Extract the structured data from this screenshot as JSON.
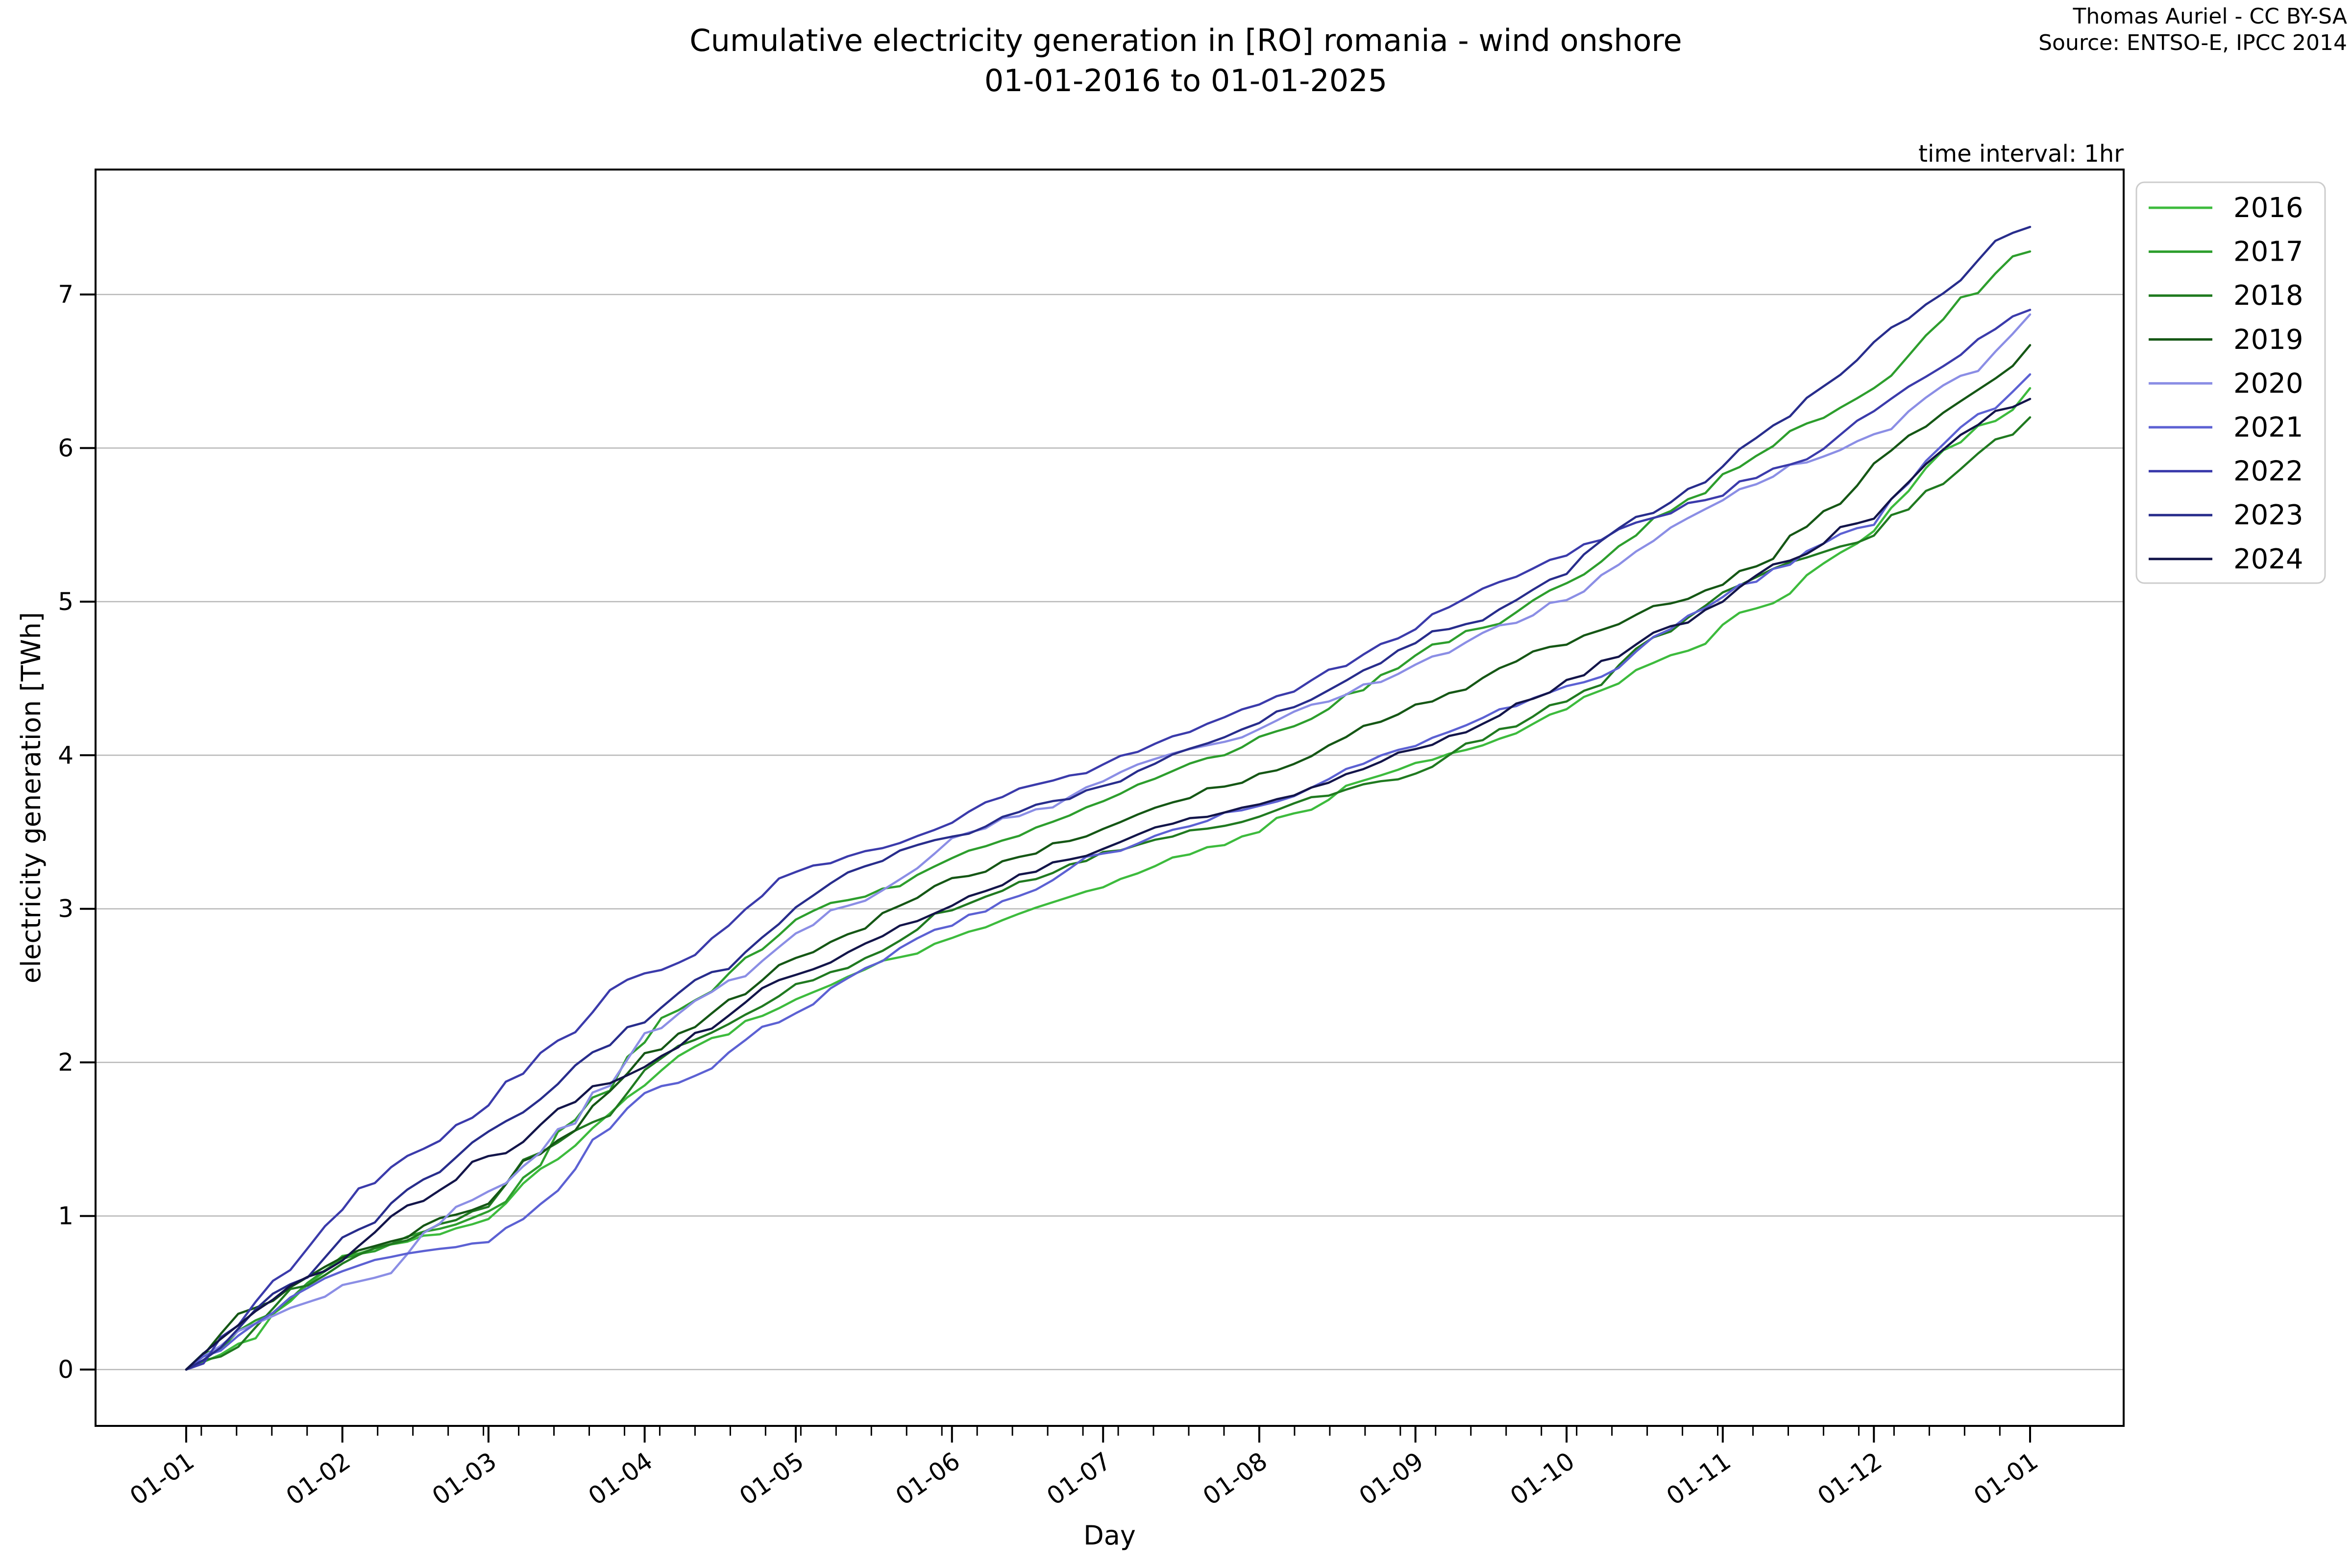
{
  "title": {
    "line1": "Cumulative electricity generation in [RO] romania - wind onshore",
    "line2": "01-01-2016 to 01-01-2025"
  },
  "attribution": {
    "line1": "Thomas Auriel - CC BY-SA",
    "line2": "Source: ENTSO-E, IPCC 2014"
  },
  "chart_data": {
    "type": "line",
    "title": "Cumulative electricity generation in [RO] romania - wind onshore 01-01-2016 to 01-01-2025",
    "annotation": "time interval: 1hr",
    "xlabel": "Day",
    "ylabel": "electricity generation [TWh]",
    "x_tick_labels": [
      "01-01",
      "01-02",
      "01-03",
      "01-04",
      "01-05",
      "01-06",
      "01-07",
      "01-08",
      "01-09",
      "01-10",
      "01-11",
      "01-12",
      "01-01"
    ],
    "y_ticks": [
      0,
      1,
      2,
      3,
      4,
      5,
      6,
      7
    ],
    "ylim": [
      -0.37,
      7.82
    ],
    "grid": "horizontal-only",
    "legend_position": "upper-right-outside",
    "axis_color": "#000000",
    "grid_color": "#b8b8b8",
    "series": [
      {
        "name": "2016",
        "color": "#3dbb3d",
        "monthly_values": [
          0,
          0.74,
          0.98,
          1.85,
          2.41,
          2.81,
          3.14,
          3.5,
          3.95,
          4.3,
          4.85,
          5.46,
          6.39
        ]
      },
      {
        "name": "2017",
        "color": "#2d9e2d",
        "monthly_values": [
          0,
          0.72,
          1.03,
          2.13,
          2.93,
          3.33,
          3.7,
          4.12,
          4.65,
          5.12,
          5.83,
          6.39,
          7.28
        ]
      },
      {
        "name": "2018",
        "color": "#207a20",
        "monthly_values": [
          0,
          0.69,
          1.06,
          1.95,
          2.51,
          2.99,
          3.37,
          3.6,
          3.88,
          4.35,
          5.06,
          5.43,
          6.2
        ]
      },
      {
        "name": "2019",
        "color": "#155715",
        "monthly_values": [
          0,
          0.73,
          1.08,
          2.06,
          2.68,
          3.2,
          3.52,
          3.88,
          4.33,
          4.72,
          5.11,
          5.9,
          6.67
        ]
      },
      {
        "name": "2020",
        "color": "#8b8ee5",
        "monthly_values": [
          0,
          0.55,
          1.16,
          2.19,
          2.84,
          3.46,
          3.83,
          4.17,
          4.59,
          5.01,
          5.66,
          6.09,
          6.87
        ]
      },
      {
        "name": "2021",
        "color": "#5c61d3",
        "monthly_values": [
          0,
          0.64,
          0.83,
          1.8,
          2.32,
          2.89,
          3.36,
          3.67,
          4.06,
          4.45,
          5.03,
          5.5,
          6.48
        ]
      },
      {
        "name": "2022",
        "color": "#3b3bab",
        "monthly_values": [
          0,
          1.04,
          1.72,
          2.58,
          3.24,
          3.56,
          3.94,
          4.33,
          4.82,
          5.3,
          5.69,
          6.24,
          6.9
        ]
      },
      {
        "name": "2023",
        "color": "#282d8c",
        "monthly_values": [
          0,
          0.86,
          1.55,
          2.26,
          3.01,
          3.47,
          3.8,
          4.21,
          4.73,
          5.18,
          5.88,
          6.69,
          7.44
        ]
      },
      {
        "name": "2024",
        "color": "#13154a",
        "monthly_values": [
          0,
          0.71,
          1.39,
          1.97,
          2.57,
          3.02,
          3.39,
          3.68,
          4.04,
          4.49,
          5.0,
          5.54,
          6.32
        ]
      }
    ]
  }
}
